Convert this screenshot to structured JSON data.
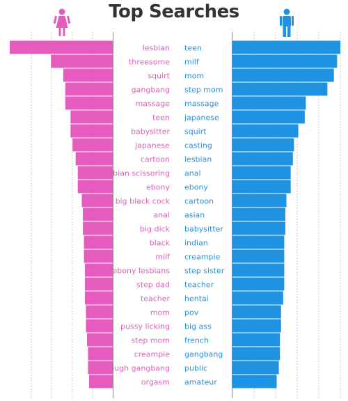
{
  "title": "Top Searches",
  "colors": {
    "female": "#e45cbe",
    "male": "#1e93e2",
    "grid": "#c8c8c8",
    "axis": "#888888",
    "title": "#333333"
  },
  "icons": {
    "female": "female-person-icon",
    "male": "male-person-icon"
  },
  "chart_data": [
    {
      "type": "bar",
      "orientation": "horizontal",
      "direction": "leftward",
      "categories": [
        "lesbian",
        "threesome",
        "squirt",
        "gangbang",
        "massage",
        "teen",
        "babysitter",
        "japanese",
        "cartoon",
        "lesbian scissoring",
        "ebony",
        "big black cock",
        "anal",
        "big dick",
        "black",
        "milf",
        "ebony lesbians",
        "step dad",
        "teacher",
        "mom",
        "pussy licking",
        "step mom",
        "creampie",
        "rough gangbang",
        "orgasm"
      ],
      "values": [
        100,
        60,
        48,
        46,
        46,
        41,
        41,
        39,
        36,
        34,
        34,
        30,
        29,
        29,
        28,
        28,
        27,
        27,
        27,
        26,
        26,
        25,
        24,
        24,
        23
      ],
      "xlim": [
        0,
        100
      ],
      "grid": true
    },
    {
      "type": "bar",
      "orientation": "horizontal",
      "direction": "rightward",
      "categories": [
        "teen",
        "milf",
        "mom",
        "step mom",
        "massage",
        "japanese",
        "squirt",
        "casting",
        "lesbian",
        "anal",
        "ebony",
        "cartoon",
        "asian",
        "babysitter",
        "indian",
        "creampie",
        "step sister",
        "teacher",
        "hentai",
        "pov",
        "big ass",
        "french",
        "gangbang",
        "public",
        "amateur"
      ],
      "values": [
        100,
        97,
        94,
        88,
        68,
        67,
        61,
        57,
        56,
        54,
        54,
        50,
        49,
        49,
        48,
        48,
        48,
        48,
        47,
        45,
        45,
        44,
        44,
        43,
        41
      ],
      "xlim": [
        0,
        100
      ],
      "grid": true
    }
  ]
}
